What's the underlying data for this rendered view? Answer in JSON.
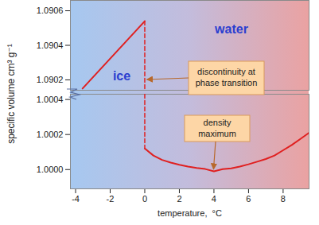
{
  "chart_data": [
    {
      "type": "line",
      "ylabel": "specific volume  cm³ g⁻¹",
      "xlim": [
        -4.3,
        9.5
      ],
      "ylim": [
        1.09014,
        1.09066
      ],
      "yticks": [
        1.0902,
        1.0904,
        1.0906
      ],
      "tick_labels": "y",
      "annotations": [
        "discontinuity at\nphase transition"
      ],
      "series": [
        {
          "name": "ice",
          "color": "#e02020",
          "x": [
            -3.6,
            0
          ],
          "values": [
            1.09015,
            1.09054
          ]
        },
        {
          "color": "#e02020",
          "line_style": "dashed",
          "x": [
            0,
            0
          ],
          "values": [
            1.09054,
            1.09014
          ]
        }
      ]
    },
    {
      "type": "line",
      "xlabel": "temperature,  °C",
      "xlim": [
        -4.3,
        9.5
      ],
      "xticks": [
        -4,
        -2,
        0,
        2,
        4,
        6,
        8
      ],
      "ylim": [
        0.99989,
        1.00043
      ],
      "yticks": [
        {
          "value": 1,
          "label": "1.0000"
        },
        1.0002,
        1.0004
      ],
      "annotations": [
        "density\nmaximum"
      ],
      "series": [
        {
          "name": "water",
          "color": "#e02020",
          "x": [
            0,
            0.5,
            1,
            1.5,
            2,
            2.5,
            3,
            3.5,
            4,
            4.5,
            5,
            5.5,
            6,
            6.5,
            7,
            7.5,
            8,
            8.5,
            9,
            9.5
          ],
          "values": [
            1.00012,
            1.00008,
            1.000055,
            1.00004,
            1.000027,
            1.000017,
            1.000009,
            1.000003,
            0.99999,
            1.000002,
            1.000007,
            1.000017,
            1.00003,
            1.000045,
            1.00006,
            1.00008,
            1.00011,
            1.00014,
            1.000175,
            1.00021
          ]
        },
        {
          "color": "#e02020",
          "line_style": "dashed",
          "x": [
            0,
            0
          ],
          "values": [
            1.00043,
            1.00012
          ]
        }
      ]
    }
  ]
}
